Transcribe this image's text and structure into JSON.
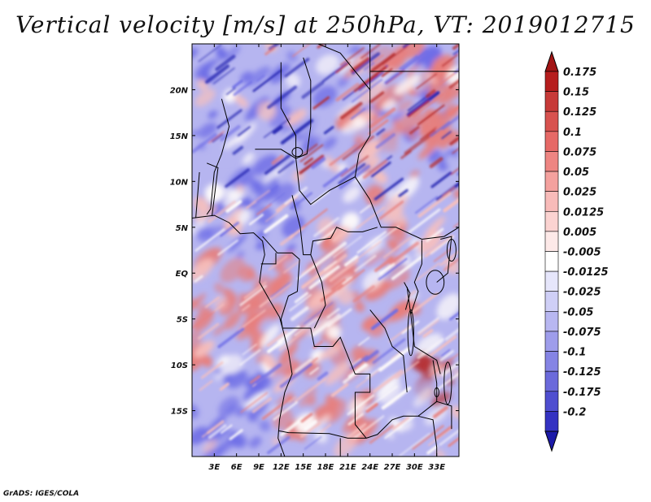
{
  "title": "Vertical velocity [m/s] at 250hPa, VT: 2019012715",
  "credit": "GrADS: IGES/COLA",
  "map": {
    "lon_range": [
      0,
      36
    ],
    "lat_range": [
      -20,
      25
    ],
    "field_colors": {
      "strong_descent": "#2a2bb4",
      "descent": "#6e6de6",
      "weak_descent": "#b6b5f0",
      "neutral": "#fdfafa",
      "weak_ascent": "#f6c0be",
      "ascent": "#e77f7d",
      "strong_ascent": "#b62b2b"
    }
  },
  "lon_ticks": [
    {
      "value": 3,
      "label": "3E"
    },
    {
      "value": 6,
      "label": "6E"
    },
    {
      "value": 9,
      "label": "9E"
    },
    {
      "value": 12,
      "label": "12E"
    },
    {
      "value": 15,
      "label": "15E"
    },
    {
      "value": 18,
      "label": "18E"
    },
    {
      "value": 21,
      "label": "21E"
    },
    {
      "value": 24,
      "label": "24E"
    },
    {
      "value": 27,
      "label": "27E"
    },
    {
      "value": 30,
      "label": "30E"
    },
    {
      "value": 33,
      "label": "33E"
    }
  ],
  "lat_ticks": [
    {
      "value": 20,
      "label": "20N"
    },
    {
      "value": 15,
      "label": "15N"
    },
    {
      "value": 10,
      "label": "10N"
    },
    {
      "value": 5,
      "label": "5N"
    },
    {
      "value": 0,
      "label": "EQ"
    },
    {
      "value": -5,
      "label": "5S"
    },
    {
      "value": -10,
      "label": "10S"
    },
    {
      "value": -15,
      "label": "15S"
    }
  ],
  "colorbar": {
    "levels": [
      {
        "label": "0.175",
        "color": "#b61e1e"
      },
      {
        "label": "0.15",
        "color": "#c73a38"
      },
      {
        "label": "0.125",
        "color": "#d8524f"
      },
      {
        "label": "0.1",
        "color": "#e66966"
      },
      {
        "label": "0.075",
        "color": "#ee8582"
      },
      {
        "label": "0.05",
        "color": "#f4a19e"
      },
      {
        "label": "0.025",
        "color": "#f8bbb9"
      },
      {
        "label": "0.0125",
        "color": "#fbd3d1"
      },
      {
        "label": "0.005",
        "color": "#fde9e8"
      },
      {
        "label": "-0.005",
        "color": "#ffffff"
      },
      {
        "label": "-0.0125",
        "color": "#e6e6fb"
      },
      {
        "label": "-0.025",
        "color": "#cfcff6"
      },
      {
        "label": "-0.05",
        "color": "#b8b7f1"
      },
      {
        "label": "-0.075",
        "color": "#9e9deb"
      },
      {
        "label": "-0.1",
        "color": "#8584e4"
      },
      {
        "label": "-0.125",
        "color": "#6b6adb"
      },
      {
        "label": "-0.175",
        "color": "#4f4ed0"
      },
      {
        "label": "-0.2",
        "color": "#3432c2"
      }
    ],
    "top_arrow_color": "#a21414",
    "bottom_arrow_color": "#1c1aa8"
  }
}
